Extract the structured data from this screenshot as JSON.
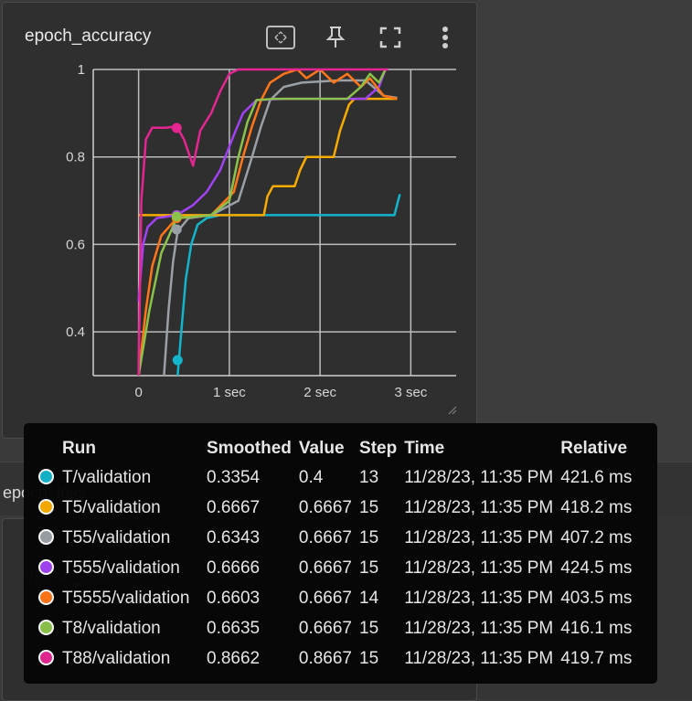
{
  "card": {
    "title": "epoch_accuracy"
  },
  "icons": [
    "fit-domain-icon",
    "pin-icon",
    "fullscreen-icon",
    "more-vert-icon"
  ],
  "background": {
    "section_label": "epoch_loss",
    "card2_title": "epoch_loss"
  },
  "chart_data": {
    "type": "line",
    "xlabel": "",
    "ylabel": "",
    "x_ticks": [
      "0",
      "1 sec",
      "2 sec",
      "3 sec"
    ],
    "y_ticks": [
      "0.4",
      "0.6",
      "0.8",
      "1"
    ],
    "xlim": [
      -0.5,
      3.5
    ],
    "ylim": [
      0.3,
      1.0
    ],
    "grid": true,
    "series": [
      {
        "name": "T/validation",
        "color": "#12b5cb",
        "points": [
          [
            0.43,
            0.3
          ],
          [
            0.47,
            0.4
          ],
          [
            0.52,
            0.52
          ],
          [
            0.58,
            0.6
          ],
          [
            0.65,
            0.645
          ],
          [
            0.75,
            0.66
          ],
          [
            0.9,
            0.667
          ],
          [
            1.5,
            0.667
          ],
          [
            2.0,
            0.667
          ],
          [
            2.5,
            0.667
          ],
          [
            2.82,
            0.667
          ],
          [
            2.86,
            0.7
          ],
          [
            2.88,
            0.715
          ]
        ],
        "marker": [
          0.43,
          0.3354
        ]
      },
      {
        "name": "T5/validation",
        "color": "#f9ab00",
        "points": [
          [
            0.0,
            0.667
          ],
          [
            0.5,
            0.667
          ],
          [
            1.0,
            0.667
          ],
          [
            1.38,
            0.667
          ],
          [
            1.42,
            0.71
          ],
          [
            1.48,
            0.733
          ],
          [
            1.72,
            0.733
          ],
          [
            1.78,
            0.77
          ],
          [
            1.85,
            0.8
          ],
          [
            2.15,
            0.8
          ],
          [
            2.22,
            0.86
          ],
          [
            2.32,
            0.92
          ],
          [
            2.38,
            0.933
          ],
          [
            2.85,
            0.933
          ]
        ],
        "marker": [
          0.42,
          0.6667
        ]
      },
      {
        "name": "T55/validation",
        "color": "#9aa0a6",
        "points": [
          [
            0.28,
            0.3
          ],
          [
            0.33,
            0.45
          ],
          [
            0.38,
            0.56
          ],
          [
            0.43,
            0.63
          ],
          [
            0.55,
            0.66
          ],
          [
            0.8,
            0.667
          ],
          [
            1.1,
            0.7
          ],
          [
            1.25,
            0.8
          ],
          [
            1.35,
            0.87
          ],
          [
            1.45,
            0.93
          ],
          [
            1.6,
            0.96
          ],
          [
            1.8,
            0.97
          ],
          [
            2.2,
            0.975
          ],
          [
            2.5,
            0.975
          ],
          [
            2.7,
            0.94
          ],
          [
            2.85,
            0.935
          ]
        ],
        "marker": [
          0.42,
          0.6343
        ]
      },
      {
        "name": "T555/validation",
        "color": "#a142f4",
        "points": [
          [
            0.0,
            0.47
          ],
          [
            0.05,
            0.6
          ],
          [
            0.1,
            0.64
          ],
          [
            0.2,
            0.66
          ],
          [
            0.42,
            0.667
          ],
          [
            0.6,
            0.69
          ],
          [
            0.75,
            0.72
          ],
          [
            0.9,
            0.77
          ],
          [
            1.05,
            0.85
          ],
          [
            1.15,
            0.9
          ],
          [
            1.3,
            0.93
          ],
          [
            1.6,
            0.933
          ],
          [
            2.0,
            0.933
          ],
          [
            2.5,
            0.933
          ],
          [
            2.65,
            0.96
          ],
          [
            2.72,
            1.0
          ],
          [
            2.75,
            1.0
          ]
        ],
        "marker": [
          0.42,
          0.6666
        ]
      },
      {
        "name": "T5555/validation",
        "color": "#ff7518",
        "points": [
          [
            0.0,
            0.3
          ],
          [
            0.08,
            0.45
          ],
          [
            0.15,
            0.55
          ],
          [
            0.25,
            0.62
          ],
          [
            0.42,
            0.66
          ],
          [
            0.8,
            0.667
          ],
          [
            1.05,
            0.72
          ],
          [
            1.15,
            0.8
          ],
          [
            1.25,
            0.87
          ],
          [
            1.35,
            0.93
          ],
          [
            1.45,
            0.97
          ],
          [
            1.6,
            0.99
          ],
          [
            1.75,
            1.0
          ],
          [
            1.85,
            0.98
          ],
          [
            2.0,
            1.0
          ],
          [
            2.15,
            0.97
          ],
          [
            2.3,
            0.99
          ],
          [
            2.45,
            0.96
          ],
          [
            2.55,
            0.98
          ],
          [
            2.7,
            0.94
          ],
          [
            2.85,
            0.933
          ]
        ],
        "marker": [
          0.42,
          0.6603
        ]
      },
      {
        "name": "T8/validation",
        "color": "#8bc34a",
        "points": [
          [
            0.0,
            0.3
          ],
          [
            0.12,
            0.45
          ],
          [
            0.25,
            0.58
          ],
          [
            0.42,
            0.66
          ],
          [
            0.8,
            0.667
          ],
          [
            1.0,
            0.7
          ],
          [
            1.1,
            0.8
          ],
          [
            1.2,
            0.88
          ],
          [
            1.3,
            0.93
          ],
          [
            1.5,
            0.933
          ],
          [
            2.0,
            0.933
          ],
          [
            2.3,
            0.933
          ],
          [
            2.45,
            0.96
          ],
          [
            2.55,
            0.99
          ],
          [
            2.65,
            0.97
          ],
          [
            2.72,
            1.0
          ]
        ],
        "marker": [
          0.42,
          0.6635
        ]
      },
      {
        "name": "T88/validation",
        "color": "#e52592",
        "points": [
          [
            0.0,
            0.3
          ],
          [
            0.03,
            0.7
          ],
          [
            0.08,
            0.84
          ],
          [
            0.15,
            0.867
          ],
          [
            0.3,
            0.867
          ],
          [
            0.42,
            0.87
          ],
          [
            0.5,
            0.84
          ],
          [
            0.6,
            0.78
          ],
          [
            0.68,
            0.86
          ],
          [
            0.8,
            0.9
          ],
          [
            0.9,
            0.95
          ],
          [
            1.0,
            0.99
          ],
          [
            1.1,
            1.0
          ],
          [
            1.5,
            1.0
          ],
          [
            2.0,
            1.0
          ],
          [
            2.5,
            1.0
          ],
          [
            2.75,
            1.0
          ]
        ],
        "marker": [
          0.42,
          0.8662
        ]
      }
    ]
  },
  "tooltip": {
    "headers": [
      "Run",
      "Smoothed",
      "Value",
      "Step",
      "Time",
      "Relative"
    ],
    "rows": [
      {
        "color": "#12b5cb",
        "run": "T/validation",
        "smoothed": "0.3354",
        "value": "0.4",
        "step": "13",
        "time": "11/28/23, 11:35 PM",
        "relative": "421.6 ms"
      },
      {
        "color": "#f9ab00",
        "run": "T5/validation",
        "smoothed": "0.6667",
        "value": "0.6667",
        "step": "15",
        "time": "11/28/23, 11:35 PM",
        "relative": "418.2 ms"
      },
      {
        "color": "#9aa0a6",
        "run": "T55/validation",
        "smoothed": "0.6343",
        "value": "0.6667",
        "step": "15",
        "time": "11/28/23, 11:35 PM",
        "relative": "407.2 ms"
      },
      {
        "color": "#a142f4",
        "run": "T555/validation",
        "smoothed": "0.6666",
        "value": "0.6667",
        "step": "15",
        "time": "11/28/23, 11:35 PM",
        "relative": "424.5 ms"
      },
      {
        "color": "#ff7518",
        "run": "T5555/validation",
        "smoothed": "0.6603",
        "value": "0.6667",
        "step": "14",
        "time": "11/28/23, 11:35 PM",
        "relative": "403.5 ms"
      },
      {
        "color": "#8bc34a",
        "run": "T8/validation",
        "smoothed": "0.6635",
        "value": "0.6667",
        "step": "15",
        "time": "11/28/23, 11:35 PM",
        "relative": "416.1 ms"
      },
      {
        "color": "#e52592",
        "run": "T88/validation",
        "smoothed": "0.8662",
        "value": "0.8667",
        "step": "15",
        "time": "11/28/23, 11:35 PM",
        "relative": "419.7 ms"
      }
    ]
  }
}
